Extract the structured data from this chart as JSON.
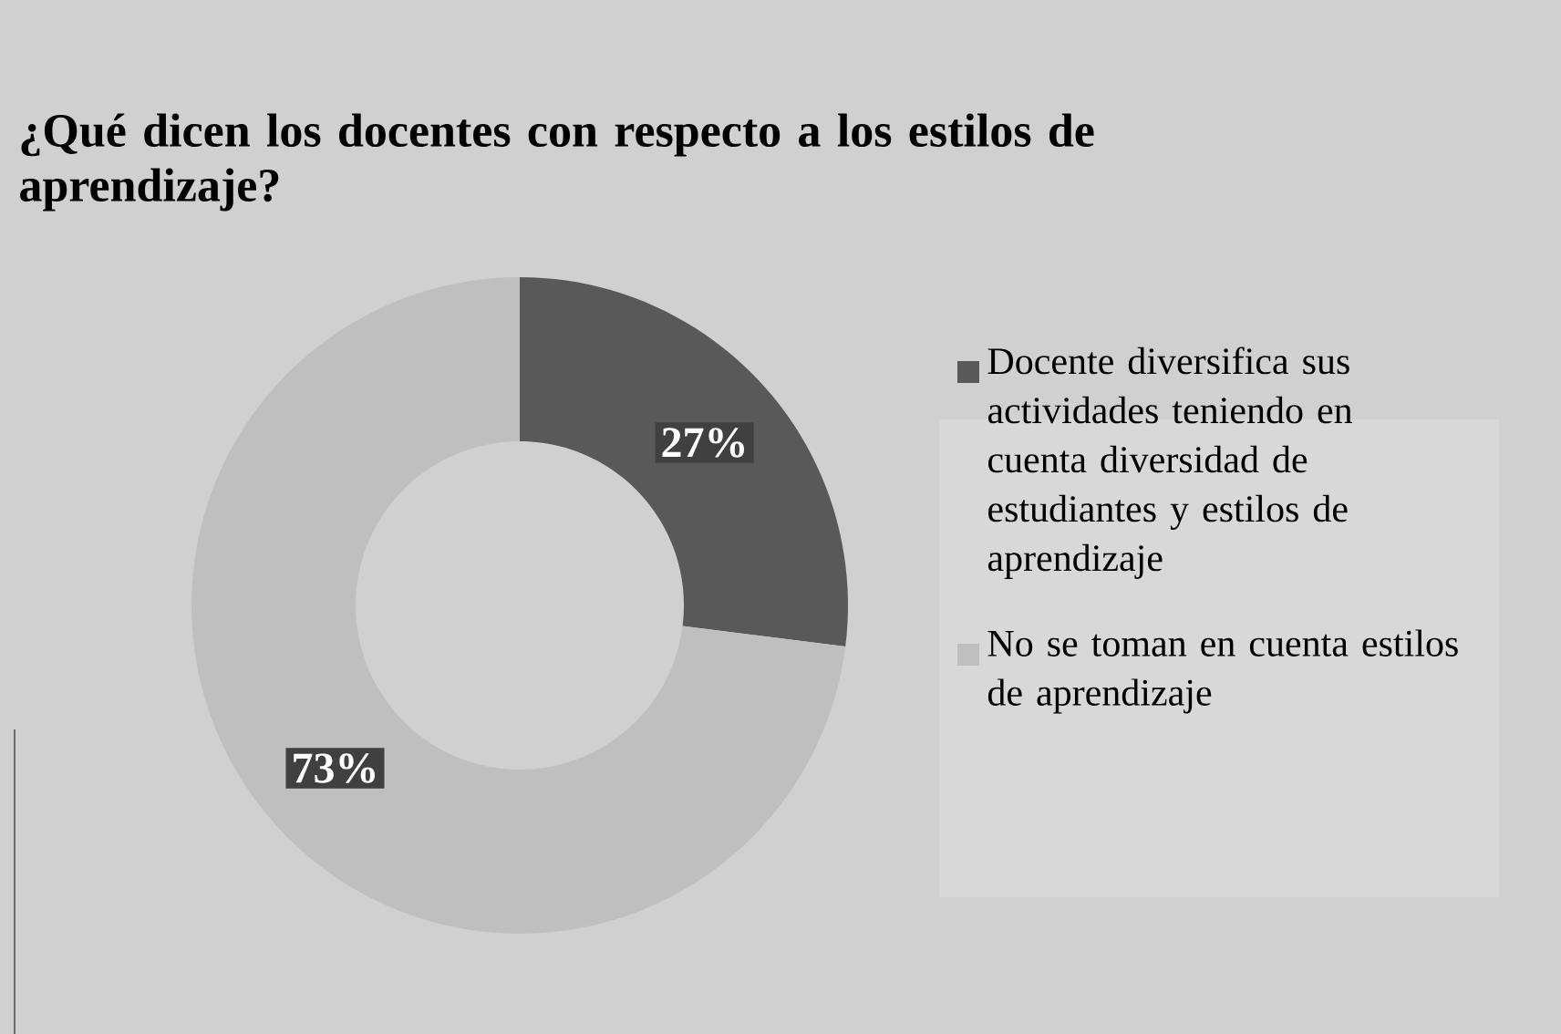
{
  "chart_data": {
    "type": "donut",
    "title": "¿Qué dicen los docentes con respecto a los estilos de aprendizaje?",
    "categories": [
      "Docente diversifica sus actividades teniendo en cuenta diversidad de estudiantes y estilos de aprendizaje",
      "No se toman en cuenta estilos de aprendizaje"
    ],
    "values": [
      27,
      73
    ],
    "colors": [
      "#595959",
      "#bfbfbf"
    ],
    "value_labels": [
      "27%",
      "73%"
    ],
    "legend": "right"
  }
}
